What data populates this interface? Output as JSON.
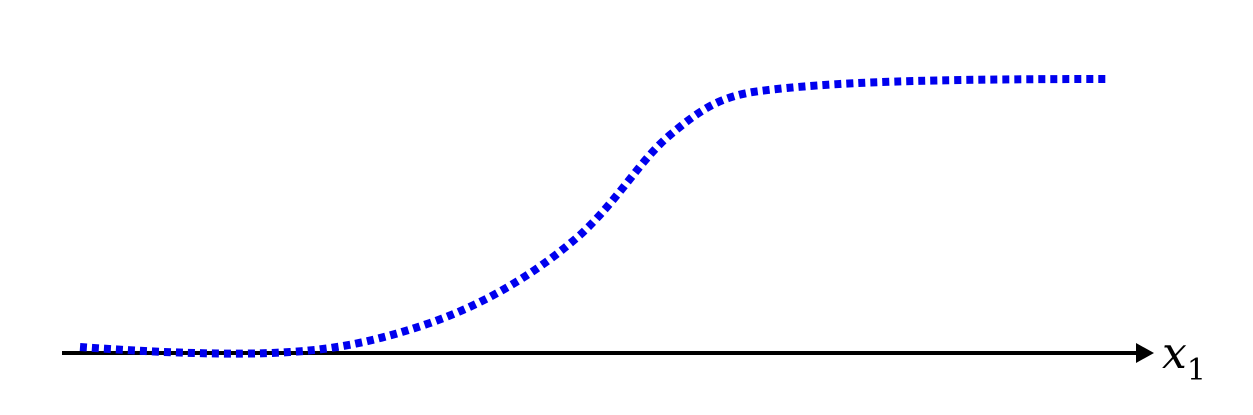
{
  "diagram": {
    "axis": {
      "label_main": "x",
      "label_sub": "1",
      "color": "#000000"
    },
    "curve": {
      "color": "#0000ee",
      "style": "dotted",
      "shape": "sigmoid"
    }
  }
}
